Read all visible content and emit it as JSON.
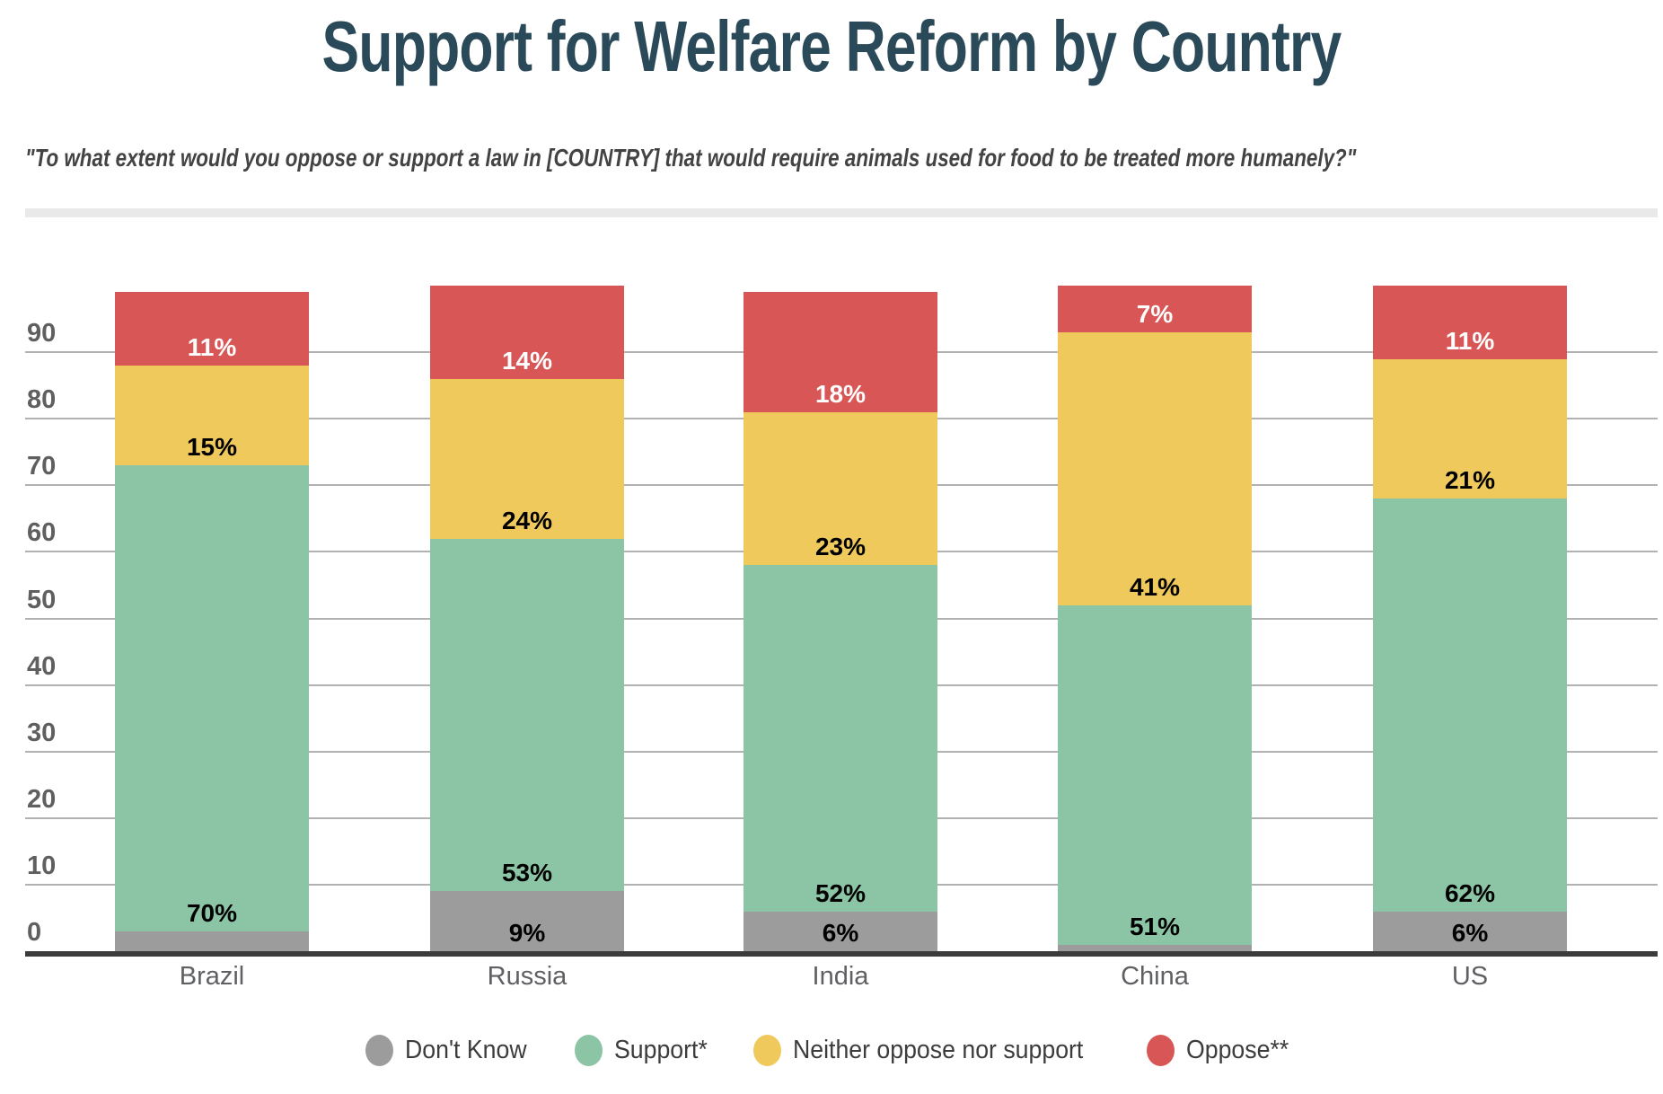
{
  "header": {
    "title": "Support for Welfare Reform by Country",
    "subtitle": "\"To what extent would you oppose or support a law in [COUNTRY] that would require animals used for food to be treated more humanely?\""
  },
  "chart_data": {
    "type": "bar",
    "stacked": true,
    "title": "Support for Welfare Reform by Country",
    "subtitle": "\"To what extent would you oppose or support a law in [COUNTRY] that would require animals used for food to be treated more humanely?\"",
    "categories": [
      "Brazil",
      "Russia",
      "India",
      "China",
      "US"
    ],
    "series": [
      {
        "name": "Don't Know",
        "color": "#9c9c9c",
        "label_text_color": "#000000",
        "values": [
          3,
          9,
          6,
          1,
          6
        ],
        "data_labels": [
          "",
          "9%",
          "6%",
          "",
          "6%"
        ]
      },
      {
        "name": "Support*",
        "color": "#8cc5a5",
        "label_text_color": "#000000",
        "values": [
          70,
          53,
          52,
          51,
          62
        ],
        "data_labels": [
          "70%",
          "53%",
          "52%",
          "51%",
          "62%"
        ]
      },
      {
        "name": "Neither oppose nor support",
        "color": "#f0c95c",
        "label_text_color": "#000000",
        "values": [
          15,
          24,
          23,
          41,
          21
        ],
        "data_labels": [
          "15%",
          "24%",
          "23%",
          "41%",
          "21%"
        ]
      },
      {
        "name": "Oppose**",
        "color": "#d85656",
        "label_text_color": "#ffffff",
        "values": [
          11,
          14,
          18,
          7,
          11
        ],
        "data_labels": [
          "11%",
          "14%",
          "18%",
          "7%",
          "11%"
        ]
      }
    ],
    "y_axis": {
      "tick_labels": [
        "0",
        "10",
        "20",
        "30",
        "40",
        "50",
        "60",
        "70",
        "80",
        "90"
      ],
      "tick_values": [
        0,
        10,
        20,
        30,
        40,
        50,
        60,
        70,
        80,
        90
      ],
      "range": [
        0,
        100
      ],
      "grid": true,
      "unit": "percent"
    },
    "legend": {
      "position": "bottom",
      "items": [
        {
          "label": "Don't Know",
          "color": "#9c9c9c"
        },
        {
          "label": "Support*",
          "color": "#8cc5a5"
        },
        {
          "label": "Neither oppose nor support",
          "color": "#f0c95c"
        },
        {
          "label": "Oppose**",
          "color": "#d85656"
        }
      ]
    }
  }
}
